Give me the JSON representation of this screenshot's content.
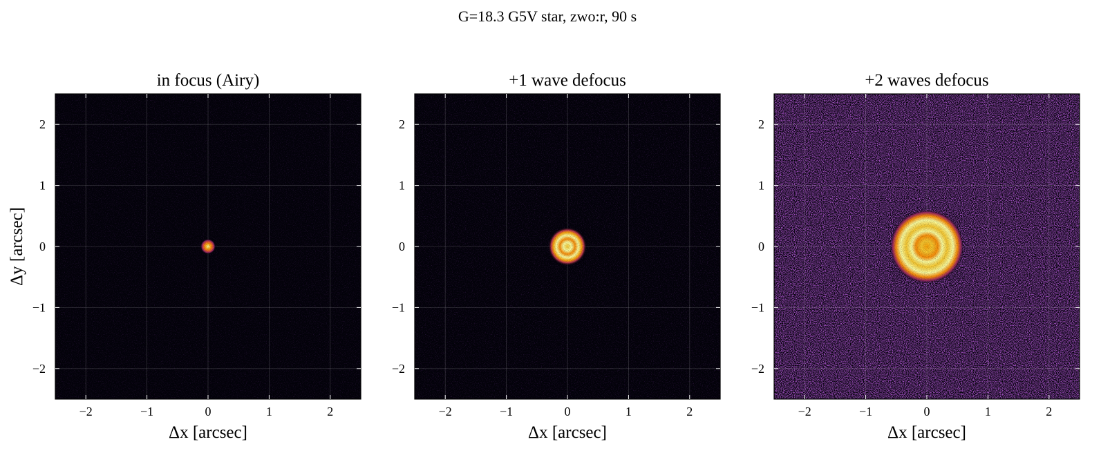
{
  "figure": {
    "suptitle": "G=18.3 G5V star, zwo:r, 90 s"
  },
  "chart_data": [
    {
      "type": "heatmap",
      "title": "in focus (Airy)",
      "xlabel": "Δx [arcsec]",
      "ylabel": "Δy [arcsec]",
      "xlim": [
        -2.5,
        2.5
      ],
      "ylim": [
        -2.5,
        2.5
      ],
      "xticks": [
        -2,
        -1,
        0,
        1,
        2
      ],
      "yticks": [
        -2,
        -1,
        0,
        1,
        2
      ],
      "xticklabels": [
        "−2",
        "−1",
        "0",
        "1",
        "2"
      ],
      "yticklabels": [
        "−2",
        "−1",
        "0",
        "1",
        "2"
      ],
      "grid": true,
      "colormap": "inferno",
      "psf": {
        "center": [
          0,
          0
        ],
        "shape": "airy-core",
        "core_radius_arcsec": 0.1,
        "ring_radius_arcsec": 0,
        "background_level": 0.05
      }
    },
    {
      "type": "heatmap",
      "title": "+1 wave defocus",
      "xlabel": "Δx [arcsec]",
      "ylabel": "",
      "xlim": [
        -2.5,
        2.5
      ],
      "ylim": [
        -2.5,
        2.5
      ],
      "xticks": [
        -2,
        -1,
        0,
        1,
        2
      ],
      "yticks": [
        -2,
        -1,
        0,
        1,
        2
      ],
      "xticklabels": [
        "−2",
        "−1",
        "0",
        "1",
        "2"
      ],
      "yticklabels": [
        "−2",
        "−1",
        "0",
        "1",
        "2"
      ],
      "grid": true,
      "colormap": "inferno",
      "psf": {
        "center": [
          0,
          0
        ],
        "shape": "donut",
        "core_radius_arcsec": 0.25,
        "ring_radius_arcsec": 0.12,
        "background_level": 0.07
      }
    },
    {
      "type": "heatmap",
      "title": "+2 waves defocus",
      "xlabel": "Δx [arcsec]",
      "ylabel": "",
      "xlim": [
        -2.5,
        2.5
      ],
      "ylim": [
        -2.5,
        2.5
      ],
      "xticks": [
        -2,
        -1,
        0,
        1,
        2
      ],
      "yticks": [
        -2,
        -1,
        0,
        1,
        2
      ],
      "xticklabels": [
        "−2",
        "−1",
        "0",
        "1",
        "2"
      ],
      "yticklabels": [
        "−2",
        "−1",
        "0",
        "1",
        "2"
      ],
      "grid": true,
      "colormap": "inferno",
      "psf": {
        "center": [
          0,
          0
        ],
        "shape": "defocused-disk",
        "core_radius_arcsec": 0.48,
        "ring_radius_arcsec": 0.2,
        "background_level": 0.22
      }
    }
  ]
}
